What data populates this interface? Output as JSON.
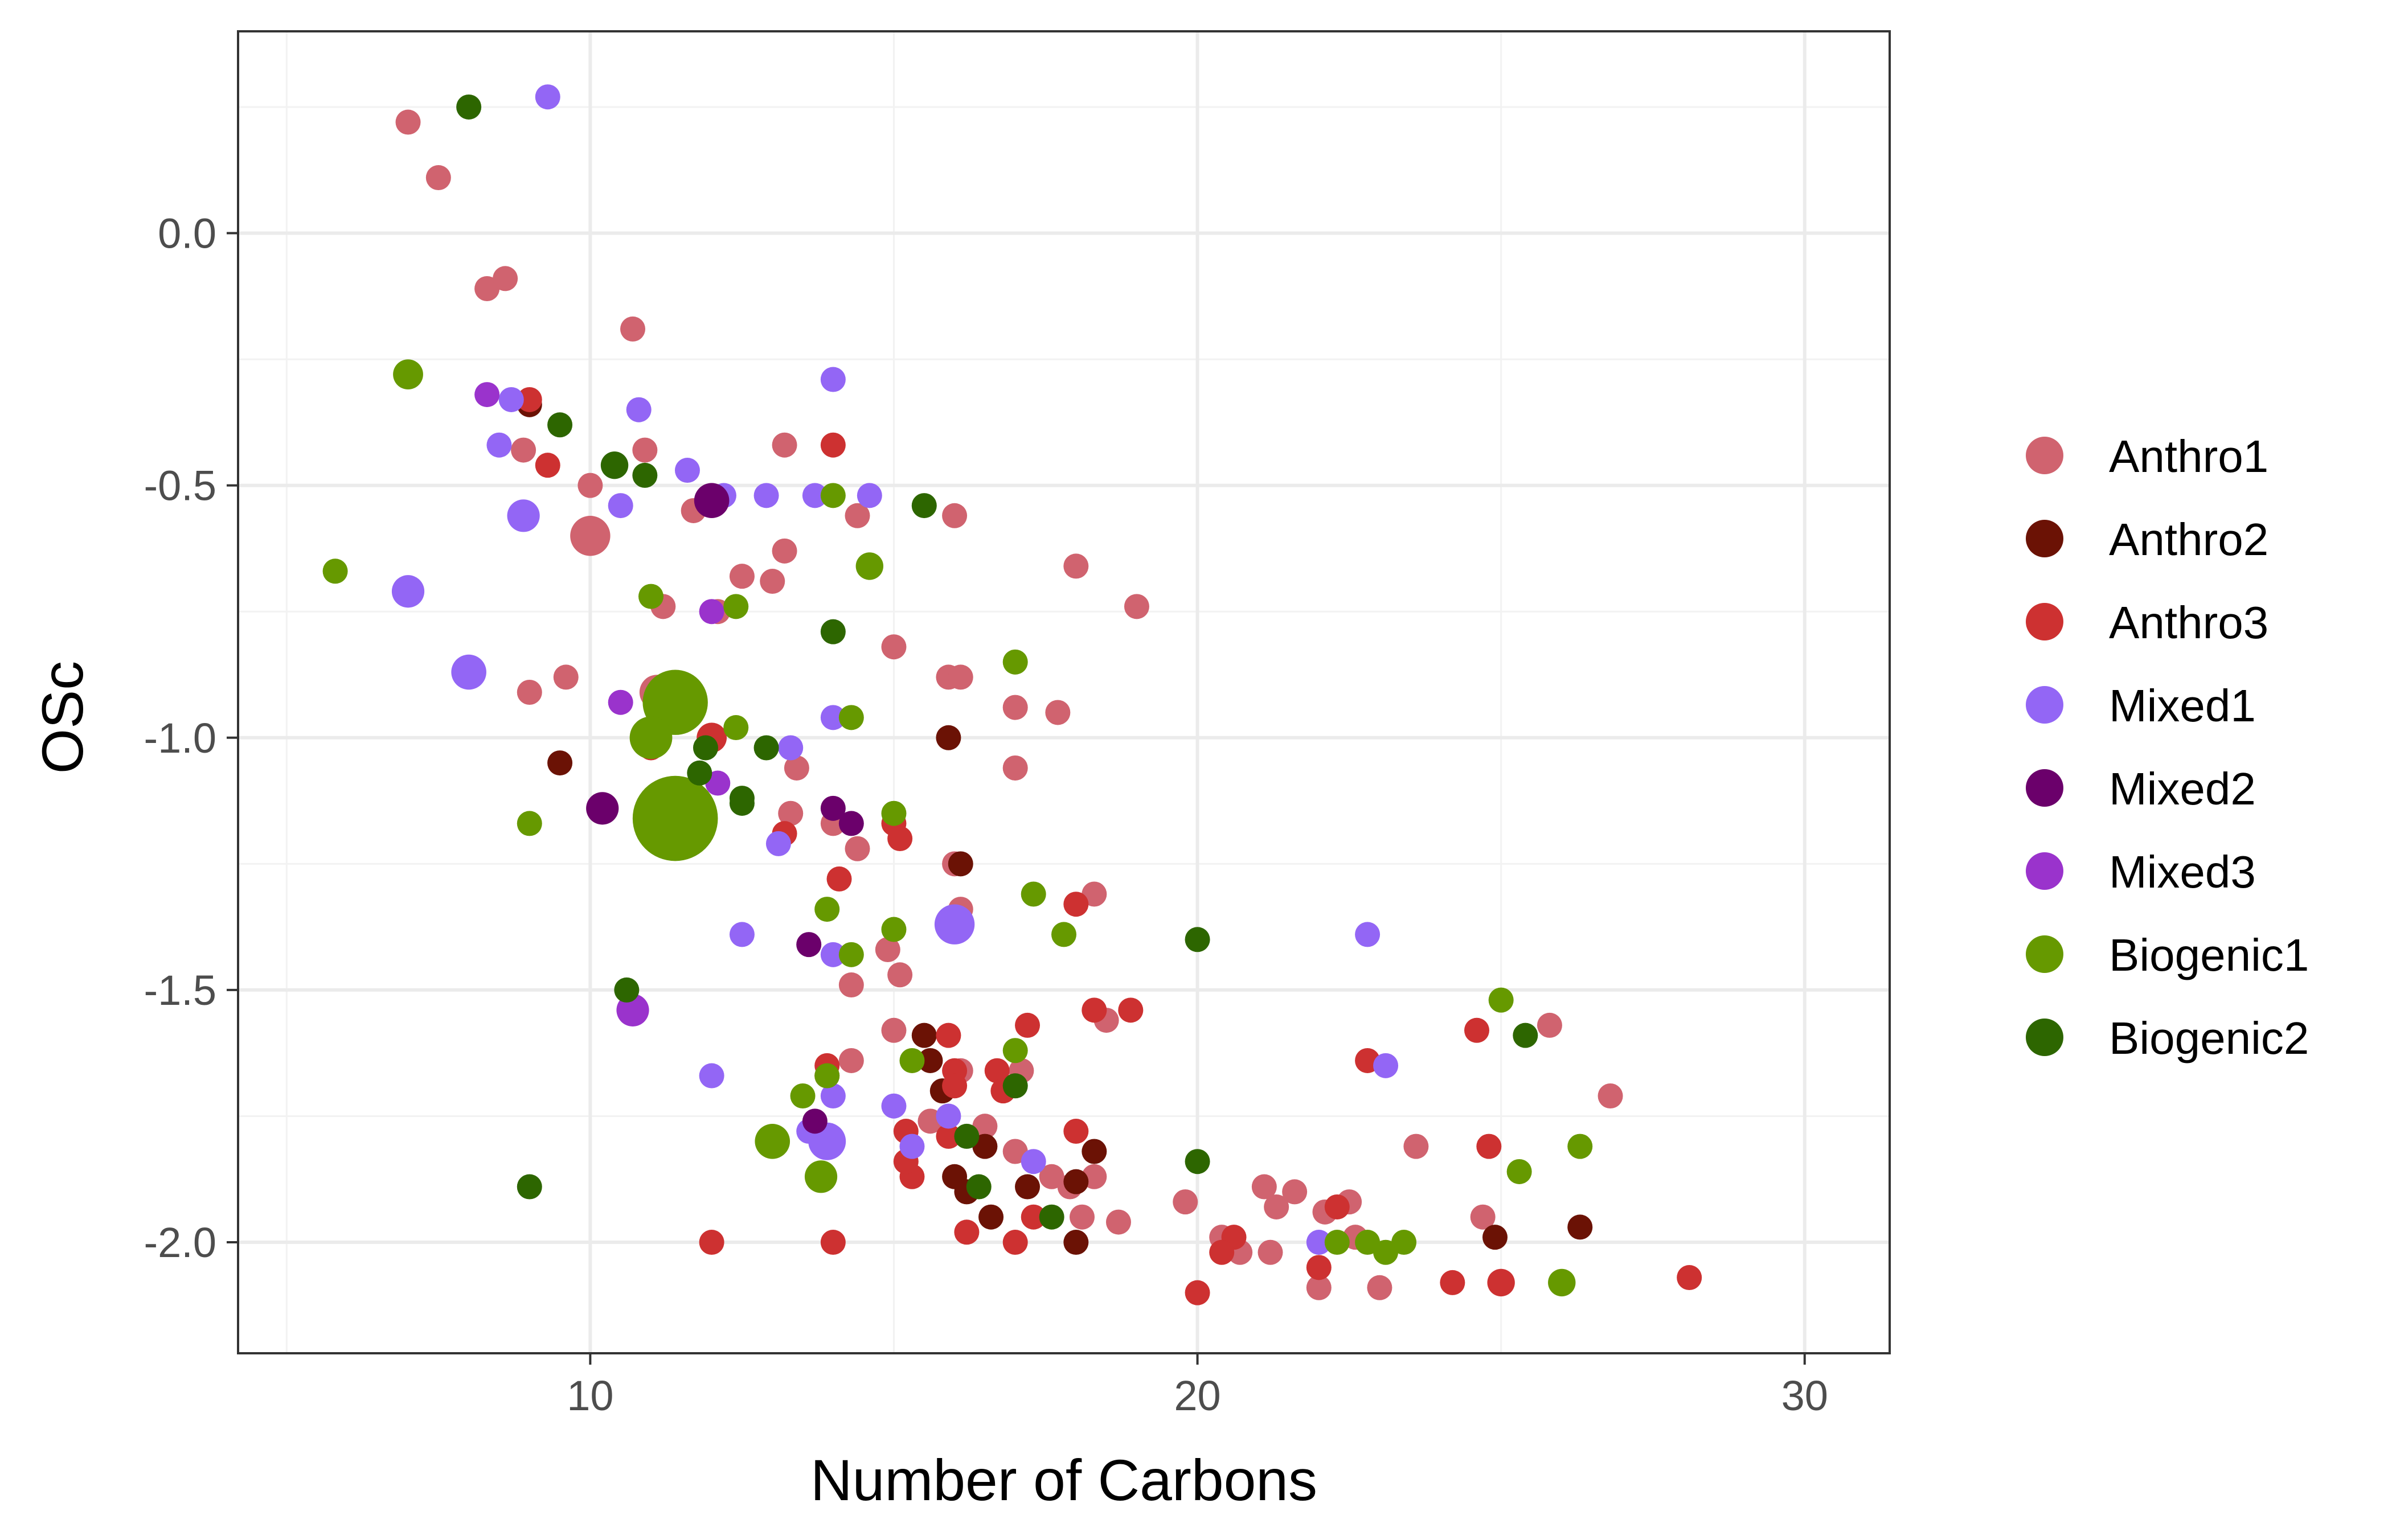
{
  "chart_data": {
    "type": "scatter",
    "title": "",
    "xlabel": "Number of Carbons",
    "ylabel": "OSc",
    "xlim": [
      4.2,
      31.4
    ],
    "ylim": [
      -2.22,
      0.4
    ],
    "x_ticks": [
      10,
      20,
      30
    ],
    "y_ticks": [
      0.0,
      -0.5,
      -1.0,
      -1.5,
      -2.0
    ],
    "x_tick_labels": [
      "10",
      "20",
      "30"
    ],
    "y_tick_labels": [
      "0.0",
      "-0.5",
      "-1.0",
      "-1.5",
      "-2.0"
    ],
    "grid": true,
    "legend_position": "right",
    "point_size_meaning": "varies (unlabeled)",
    "series": [
      {
        "name": "Anthro1",
        "color": "#d0636f",
        "points": [
          [
            7,
            0.22,
            1
          ],
          [
            7.5,
            0.11,
            1
          ],
          [
            8.3,
            -0.11,
            1
          ],
          [
            8.6,
            -0.09,
            1
          ],
          [
            10.7,
            -0.19,
            1
          ],
          [
            8.9,
            -0.43,
            1
          ],
          [
            10,
            -0.5,
            1
          ],
          [
            10.9,
            -0.43,
            1
          ],
          [
            10,
            -0.6,
            1.6
          ],
          [
            11.2,
            -0.74,
            1
          ],
          [
            11.7,
            -0.55,
            1
          ],
          [
            12.5,
            -0.68,
            1
          ],
          [
            13,
            -0.69,
            1
          ],
          [
            13.2,
            -0.42,
            1
          ],
          [
            13.2,
            -0.63,
            1
          ],
          [
            14.4,
            -0.56,
            1
          ],
          [
            16,
            -0.56,
            1
          ],
          [
            9,
            -0.91,
            1
          ],
          [
            9.6,
            -0.88,
            1
          ],
          [
            11.1,
            -0.91,
            1.4
          ],
          [
            12.1,
            -0.75,
            1
          ],
          [
            15,
            -0.82,
            1
          ],
          [
            15.9,
            -0.88,
            1
          ],
          [
            16.1,
            -0.88,
            1
          ],
          [
            18,
            -0.66,
            1
          ],
          [
            19,
            -0.74,
            1
          ],
          [
            17,
            -0.94,
            1
          ],
          [
            17.7,
            -0.95,
            1
          ],
          [
            17,
            -1.06,
            1
          ],
          [
            13.4,
            -1.06,
            1
          ],
          [
            13.3,
            -1.15,
            1
          ],
          [
            14,
            -1.17,
            1
          ],
          [
            14.4,
            -1.22,
            1
          ],
          [
            11.1,
            -1.18,
            1.3
          ],
          [
            16,
            -1.25,
            1
          ],
          [
            16.1,
            -1.34,
            1
          ],
          [
            14.9,
            -1.42,
            1
          ],
          [
            15.1,
            -1.47,
            1
          ],
          [
            14.3,
            -1.49,
            1
          ],
          [
            18.3,
            -1.31,
            1
          ],
          [
            15,
            -1.58,
            1
          ],
          [
            14.3,
            -1.64,
            1
          ],
          [
            16.1,
            -1.66,
            1
          ],
          [
            17.1,
            -1.66,
            1
          ],
          [
            18.5,
            -1.56,
            1
          ],
          [
            15.6,
            -1.76,
            1
          ],
          [
            16.5,
            -1.77,
            1
          ],
          [
            17,
            -1.82,
            1
          ],
          [
            17.6,
            -1.87,
            1
          ],
          [
            18.3,
            -1.87,
            1
          ],
          [
            17.9,
            -1.89,
            1
          ],
          [
            18.7,
            -1.96,
            1
          ],
          [
            18.1,
            -1.95,
            1
          ],
          [
            19.8,
            -1.92,
            1
          ],
          [
            20.4,
            -1.99,
            1
          ],
          [
            20.7,
            -2.02,
            1
          ],
          [
            21.1,
            -1.89,
            1
          ],
          [
            21.3,
            -1.93,
            1
          ],
          [
            21.6,
            -1.9,
            1
          ],
          [
            22.1,
            -1.94,
            1
          ],
          [
            22.5,
            -1.92,
            1
          ],
          [
            22.6,
            -1.99,
            1
          ],
          [
            22,
            -2.09,
            1
          ],
          [
            21.2,
            -2.02,
            1
          ],
          [
            23,
            -2.09,
            1
          ],
          [
            23.6,
            -1.81,
            1
          ],
          [
            24.7,
            -1.95,
            1
          ],
          [
            25.8,
            -1.57,
            1
          ],
          [
            26.8,
            -1.71,
            1
          ]
        ]
      },
      {
        "name": "Anthro2",
        "color": "#6b1205",
        "points": [
          [
            9,
            -0.34,
            1
          ],
          [
            9.5,
            -1.05,
            1
          ],
          [
            15.5,
            -1.59,
            1
          ],
          [
            15.6,
            -1.64,
            1
          ],
          [
            15.8,
            -1.7,
            1
          ],
          [
            16.1,
            -1.25,
            1
          ],
          [
            15.9,
            -1.0,
            1
          ],
          [
            16,
            -1.87,
            1
          ],
          [
            16.2,
            -1.9,
            1
          ],
          [
            16.5,
            -1.81,
            1
          ],
          [
            16.6,
            -1.95,
            1
          ],
          [
            17.2,
            -1.89,
            1
          ],
          [
            18,
            -1.88,
            1
          ],
          [
            18.3,
            -1.82,
            1
          ],
          [
            18,
            -2.0,
            1
          ],
          [
            24.9,
            -1.99,
            1
          ],
          [
            26.3,
            -1.97,
            1
          ]
        ]
      },
      {
        "name": "Anthro3",
        "color": "#cd3131",
        "points": [
          [
            9,
            -0.33,
            1
          ],
          [
            9.3,
            -0.46,
            1
          ],
          [
            14,
            -0.42,
            1
          ],
          [
            11,
            -1.02,
            1
          ],
          [
            12,
            -1.0,
            1.2
          ],
          [
            13.2,
            -1.19,
            1
          ],
          [
            15,
            -1.17,
            1
          ],
          [
            15.1,
            -1.2,
            1
          ],
          [
            14.1,
            -1.28,
            1
          ],
          [
            13.9,
            -1.65,
            1
          ],
          [
            13.9,
            -1.67,
            1
          ],
          [
            15.2,
            -1.78,
            1
          ],
          [
            15.3,
            -1.87,
            1
          ],
          [
            15.2,
            -1.84,
            1
          ],
          [
            15.9,
            -1.59,
            1
          ],
          [
            16,
            -1.66,
            1
          ],
          [
            16,
            -1.69,
            1
          ],
          [
            16.7,
            -1.66,
            1
          ],
          [
            16.8,
            -1.7,
            1
          ],
          [
            17.2,
            -1.57,
            1
          ],
          [
            18,
            -1.33,
            1
          ],
          [
            18.3,
            -1.54,
            1
          ],
          [
            18.9,
            -1.54,
            1
          ],
          [
            18,
            -1.78,
            1
          ],
          [
            15.9,
            -1.79,
            1
          ],
          [
            16.2,
            -1.98,
            1
          ],
          [
            17.3,
            -1.95,
            1
          ],
          [
            17,
            -2.0,
            1
          ],
          [
            12,
            -2.0,
            1
          ],
          [
            14,
            -2.0,
            1
          ],
          [
            20,
            -2.1,
            1
          ],
          [
            20.6,
            -1.99,
            1
          ],
          [
            20.4,
            -2.02,
            1
          ],
          [
            22,
            -2.05,
            1
          ],
          [
            22.3,
            -1.93,
            1
          ],
          [
            22.8,
            -1.64,
            1
          ],
          [
            24.2,
            -2.08,
            1
          ],
          [
            24.6,
            -1.58,
            1
          ],
          [
            24.8,
            -1.81,
            1
          ],
          [
            25,
            -2.08,
            1.1
          ],
          [
            28.1,
            -2.07,
            1
          ]
        ]
      },
      {
        "name": "Mixed1",
        "color": "#9366f5",
        "points": [
          [
            9.3,
            0.27,
            1
          ],
          [
            8.7,
            -0.33,
            1
          ],
          [
            8.5,
            -0.42,
            1
          ],
          [
            10.8,
            -0.35,
            1
          ],
          [
            10.5,
            -0.54,
            1
          ],
          [
            11.6,
            -0.47,
            1
          ],
          [
            12.2,
            -0.52,
            1
          ],
          [
            12.9,
            -0.52,
            1
          ],
          [
            14,
            -0.29,
            1
          ],
          [
            13.7,
            -0.52,
            1
          ],
          [
            14.6,
            -0.52,
            1
          ],
          [
            8.9,
            -0.56,
            1.3
          ],
          [
            7,
            -0.71,
            1.3
          ],
          [
            8,
            -0.87,
            1.4
          ],
          [
            14,
            -0.96,
            1
          ],
          [
            13.3,
            -1.02,
            1
          ],
          [
            13.1,
            -1.21,
            1
          ],
          [
            12.5,
            -1.39,
            1
          ],
          [
            14,
            -1.43,
            1
          ],
          [
            12,
            -1.67,
            1
          ],
          [
            14,
            -1.71,
            1
          ],
          [
            15,
            -1.73,
            1
          ],
          [
            15.3,
            -1.81,
            1
          ],
          [
            15.9,
            -1.75,
            1
          ],
          [
            13.6,
            -1.78,
            1
          ],
          [
            13.9,
            -1.8,
            1.5
          ],
          [
            17.3,
            -1.84,
            1
          ],
          [
            16,
            -1.37,
            1.6
          ],
          [
            22.8,
            -1.39,
            1
          ],
          [
            23.1,
            -1.65,
            1
          ],
          [
            22,
            -2.0,
            1
          ]
        ]
      },
      {
        "name": "Mixed2",
        "color": "#6b006b",
        "points": [
          [
            12,
            -0.53,
            1.4
          ],
          [
            10.2,
            -1.14,
            1.3
          ],
          [
            14,
            -1.14,
            1
          ],
          [
            14.3,
            -1.17,
            1
          ],
          [
            13.6,
            -1.41,
            1
          ],
          [
            13.7,
            -1.76,
            1
          ]
        ]
      },
      {
        "name": "Mixed3",
        "color": "#9a33cc",
        "points": [
          [
            8.3,
            -0.32,
            1
          ],
          [
            12,
            -0.75,
            1
          ],
          [
            10.5,
            -0.93,
            1
          ],
          [
            12.1,
            -1.09,
            1
          ],
          [
            11,
            -1.15,
            1
          ],
          [
            10.7,
            -1.54,
            1.3
          ]
        ]
      },
      {
        "name": "Biogenic1",
        "color": "#669900",
        "points": [
          [
            7,
            -0.28,
            1.2
          ],
          [
            5.8,
            -0.67,
            1
          ],
          [
            11,
            -0.72,
            1
          ],
          [
            12.4,
            -0.74,
            1
          ],
          [
            14,
            -0.52,
            1
          ],
          [
            14.6,
            -0.66,
            1.1
          ],
          [
            17,
            -0.85,
            1
          ],
          [
            12.4,
            -0.98,
            1
          ],
          [
            11.4,
            -0.93,
            2.6
          ],
          [
            11,
            -1.0,
            1.7
          ],
          [
            11.4,
            -1.16,
            3.4
          ],
          [
            9,
            -1.17,
            1
          ],
          [
            14.3,
            -0.96,
            1
          ],
          [
            15,
            -1.15,
            1
          ],
          [
            13.9,
            -1.34,
            1
          ],
          [
            14.3,
            -1.43,
            1
          ],
          [
            15,
            -1.38,
            1
          ],
          [
            17.3,
            -1.31,
            1
          ],
          [
            17.8,
            -1.39,
            1
          ],
          [
            15.3,
            -1.64,
            1
          ],
          [
            13.9,
            -1.67,
            1
          ],
          [
            13.5,
            -1.71,
            1
          ],
          [
            13,
            -1.8,
            1.4
          ],
          [
            13.8,
            -1.87,
            1.3
          ],
          [
            17,
            -1.62,
            1
          ],
          [
            25,
            -1.52,
            1
          ],
          [
            25.3,
            -1.86,
            1
          ],
          [
            26.3,
            -1.81,
            1
          ],
          [
            26,
            -2.08,
            1.1
          ],
          [
            23.4,
            -2.0,
            1
          ],
          [
            23.1,
            -2.02,
            1
          ],
          [
            22.3,
            -2.0,
            1
          ],
          [
            22.8,
            -2.0,
            1
          ]
        ]
      },
      {
        "name": "Biogenic2",
        "color": "#2d6600",
        "points": [
          [
            8,
            0.25,
            1
          ],
          [
            9.5,
            -0.38,
            1
          ],
          [
            10.4,
            -0.46,
            1.1
          ],
          [
            10.9,
            -0.48,
            1
          ],
          [
            15.5,
            -0.54,
            1
          ],
          [
            14,
            -0.79,
            1
          ],
          [
            12.5,
            -1.12,
            1
          ],
          [
            12.5,
            -1.13,
            1
          ],
          [
            12.9,
            -1.02,
            1
          ],
          [
            11.9,
            -1.02,
            1
          ],
          [
            11.8,
            -1.07,
            1
          ],
          [
            10.6,
            -1.5,
            1
          ],
          [
            9,
            -1.89,
            1
          ],
          [
            20,
            -1.4,
            1
          ],
          [
            16.2,
            -1.79,
            1
          ],
          [
            16.4,
            -1.89,
            1
          ],
          [
            17,
            -1.69,
            1
          ],
          [
            17.6,
            -1.95,
            1
          ],
          [
            20,
            -1.84,
            1
          ],
          [
            25.4,
            -1.59,
            1
          ]
        ]
      }
    ]
  }
}
